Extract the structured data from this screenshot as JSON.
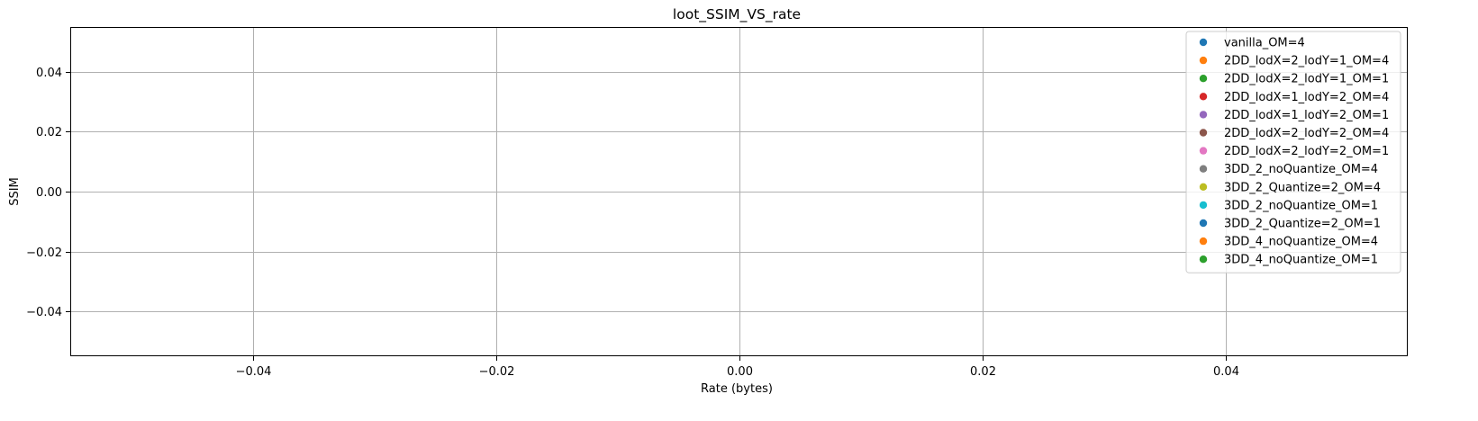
{
  "chart_data": {
    "type": "scatter",
    "title": "loot_SSIM_VS_rate",
    "xlabel": "Rate (bytes)",
    "ylabel": "SSIM",
    "xlim": [
      -0.055,
      0.055
    ],
    "ylim": [
      -0.055,
      0.055
    ],
    "xticks": [
      -0.04,
      -0.02,
      0.0,
      0.02,
      0.04
    ],
    "yticks": [
      -0.04,
      -0.02,
      0.0,
      0.02,
      0.04
    ],
    "xtick_labels": [
      "−0.04",
      "−0.02",
      "0.00",
      "0.02",
      "0.04"
    ],
    "ytick_labels": [
      "−0.04",
      "−0.02",
      "0.00",
      "0.02",
      "0.04"
    ],
    "grid": true,
    "legend_position": "top-right",
    "series": [
      {
        "name": "vanilla_OM=4",
        "color": "#1f77b4",
        "x": [],
        "y": []
      },
      {
        "name": "2DD_lodX=2_lodY=1_OM=4",
        "color": "#ff7f0e",
        "x": [],
        "y": []
      },
      {
        "name": "2DD_lodX=2_lodY=1_OM=1",
        "color": "#2ca02c",
        "x": [],
        "y": []
      },
      {
        "name": "2DD_lodX=1_lodY=2_OM=4",
        "color": "#d62728",
        "x": [],
        "y": []
      },
      {
        "name": "2DD_lodX=1_lodY=2_OM=1",
        "color": "#9467bd",
        "x": [],
        "y": []
      },
      {
        "name": "2DD_lodX=2_lodY=2_OM=4",
        "color": "#8c564b",
        "x": [],
        "y": []
      },
      {
        "name": "2DD_lodX=2_lodY=2_OM=1",
        "color": "#e377c2",
        "x": [],
        "y": []
      },
      {
        "name": "3DD_2_noQuantize_OM=4",
        "color": "#7f7f7f",
        "x": [],
        "y": []
      },
      {
        "name": "3DD_2_Quantize=2_OM=4",
        "color": "#bcbd22",
        "x": [],
        "y": []
      },
      {
        "name": "3DD_2_noQuantize_OM=1",
        "color": "#17becf",
        "x": [],
        "y": []
      },
      {
        "name": "3DD_2_Quantize=2_OM=1",
        "color": "#1f77b4",
        "x": [],
        "y": []
      },
      {
        "name": "3DD_4_noQuantize_OM=4",
        "color": "#ff7f0e",
        "x": [],
        "y": []
      },
      {
        "name": "3DD_4_noQuantize_OM=1",
        "color": "#2ca02c",
        "x": [],
        "y": []
      }
    ]
  }
}
